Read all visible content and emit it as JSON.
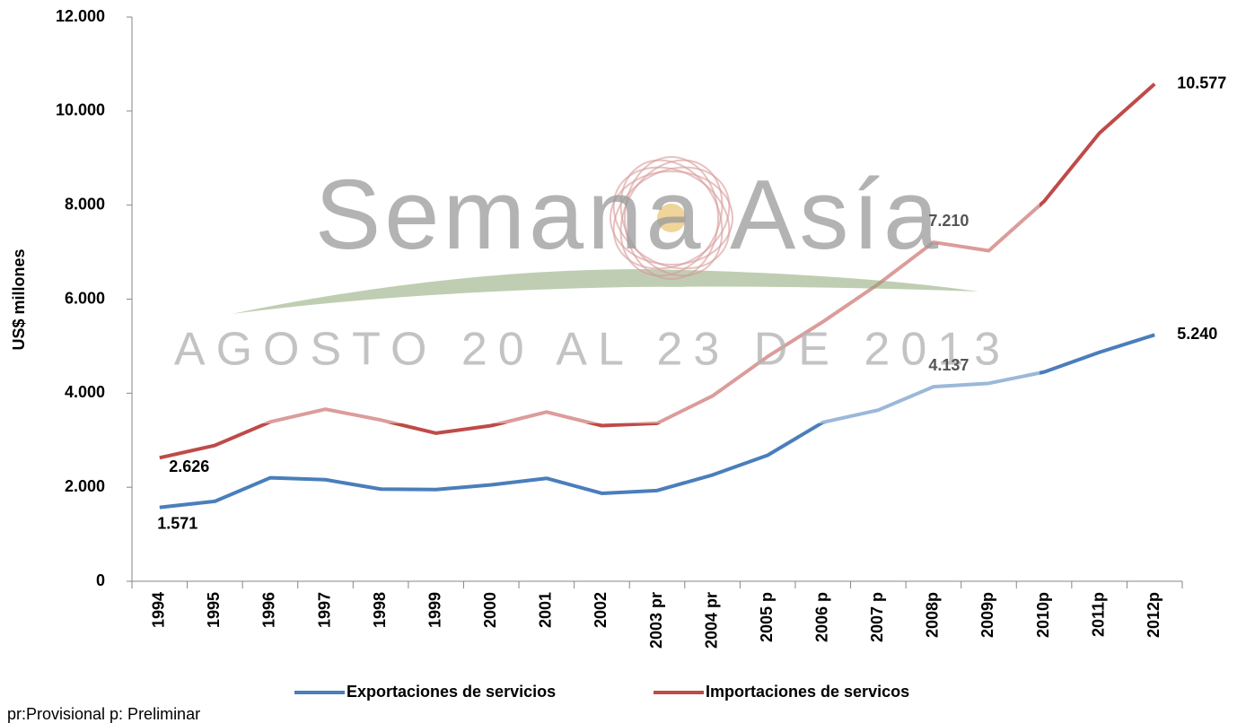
{
  "chart_data": {
    "type": "line",
    "y_label": "US$ millones",
    "categories": [
      "1994",
      "1995",
      "1996",
      "1997",
      "1998",
      "1999",
      "2000",
      "2001",
      "2002",
      "2003 pr",
      "2004 pr",
      "2005 p",
      "2006 p",
      "2007 p",
      "2008p",
      "2009p",
      "2010p",
      "2011p",
      "2012p"
    ],
    "series": [
      {
        "name": "Exportaciones de servicios",
        "color": "#4a7ebb",
        "values": [
          1571,
          1700,
          2200,
          2160,
          1960,
          1950,
          2050,
          2190,
          1870,
          1930,
          2260,
          2680,
          3380,
          3640,
          4137,
          4210,
          4450,
          4870,
          5240
        ],
        "value_labels": [
          "1.571",
          null,
          null,
          null,
          null,
          null,
          null,
          null,
          null,
          null,
          null,
          null,
          null,
          null,
          "4.137",
          null,
          null,
          null,
          "5.240"
        ]
      },
      {
        "name": "Importaciones de servicos",
        "color": "#be4b48",
        "values": [
          2626,
          2890,
          3390,
          3660,
          3430,
          3150,
          3310,
          3600,
          3310,
          3360,
          3940,
          4780,
          5520,
          6320,
          7210,
          7030,
          8080,
          9530,
          10577
        ],
        "value_labels": [
          "2.626",
          null,
          null,
          null,
          null,
          null,
          null,
          null,
          null,
          null,
          null,
          null,
          null,
          null,
          "7.210",
          null,
          null,
          null,
          "10.577"
        ]
      }
    ],
    "ylim": [
      0,
      12000
    ],
    "yticks": [
      0,
      {
        "value": 2000,
        "label": "2.000"
      },
      {
        "value": 4000,
        "label": "4.000"
      },
      {
        "value": 6000,
        "label": "6.000"
      },
      {
        "value": 8000,
        "label": "8.000"
      },
      {
        "value": 10000,
        "label": "10.000"
      },
      {
        "value": 12000,
        "label": "12.000"
      }
    ],
    "grid": false,
    "legend": "bottom",
    "watermark": {
      "title": "Semana Asía",
      "subtitle": "AGOSTO 20 AL 23 DE 2013"
    },
    "footnote": "pr:Provisional   p: Preliminar"
  }
}
